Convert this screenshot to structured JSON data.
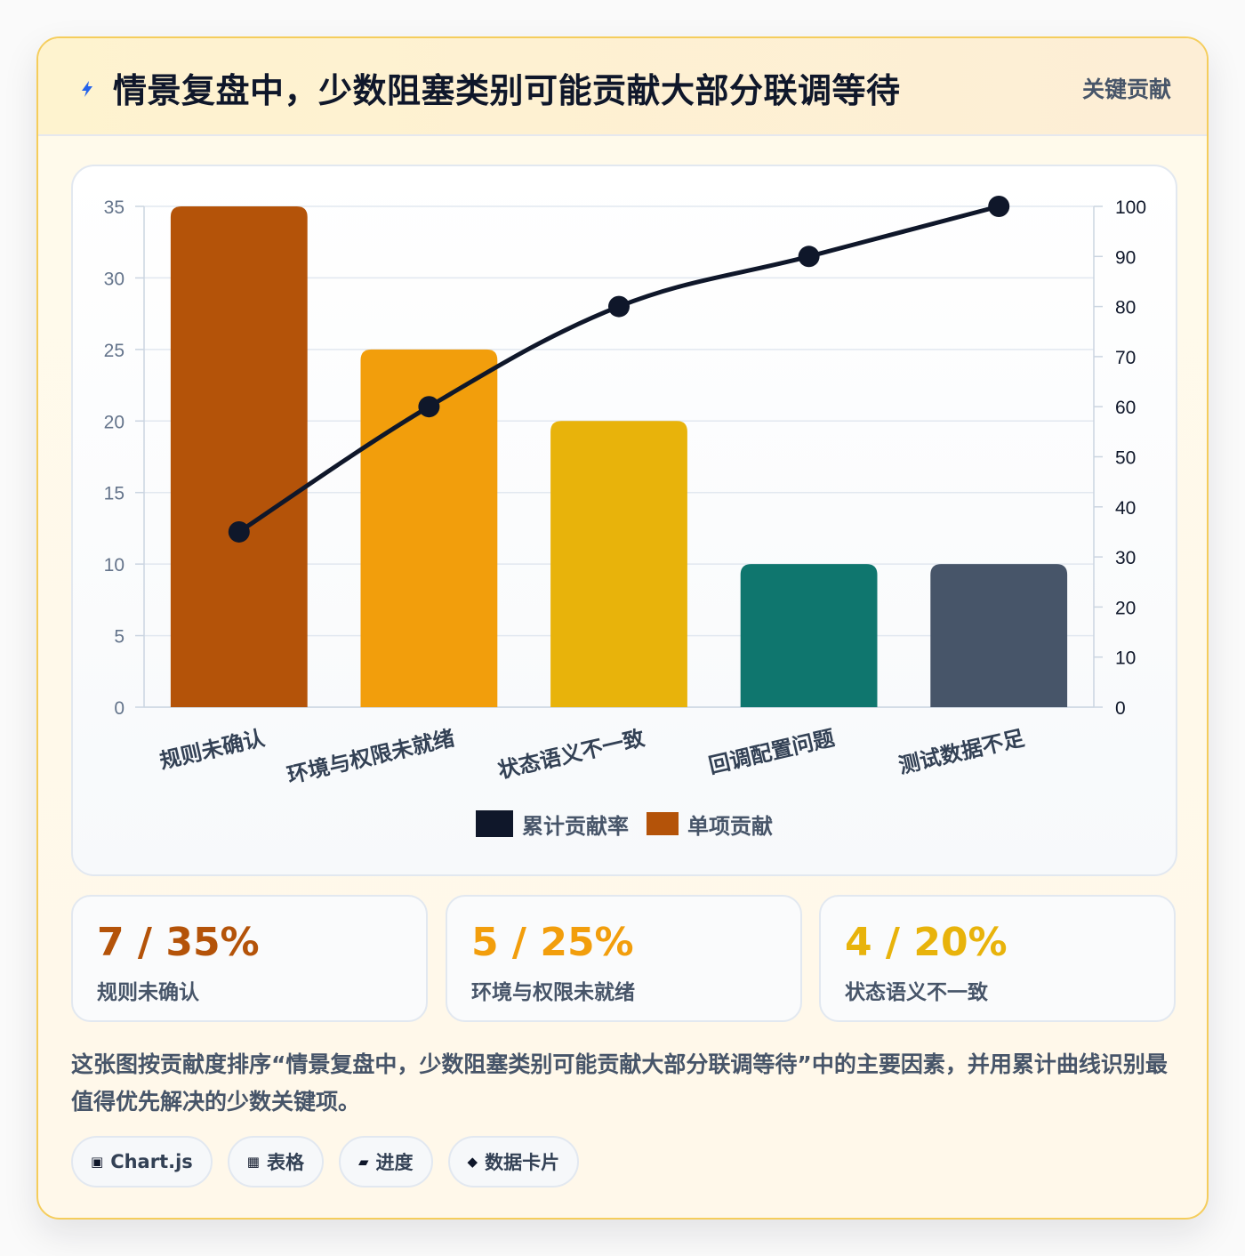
{
  "header": {
    "icon": "lightning-icon",
    "title": "情景复盘中，少数阻塞类别可能贡献大部分联调等待",
    "badge": "关键贡献"
  },
  "chart_data": {
    "type": "bar",
    "categories": [
      "规则未确认",
      "环境与权限未就绪",
      "状态语义不一致",
      "回调配置问题",
      "测试数据不足"
    ],
    "series": [
      {
        "name": "单项贡献",
        "type": "bar",
        "axis": "left",
        "values": [
          35,
          25,
          20,
          10,
          10
        ]
      },
      {
        "name": "累计贡献率",
        "type": "line",
        "axis": "right",
        "values": [
          35,
          60,
          80,
          90,
          100
        ]
      }
    ],
    "bar_colors": [
      "#b45309",
      "#f29e0c",
      "#e8b30b",
      "#0f766e",
      "#475569"
    ],
    "line_color": "#0f172a",
    "ylim": [
      0,
      35
    ],
    "y_ticks": [
      0,
      5,
      10,
      15,
      20,
      25,
      30,
      35
    ],
    "y2lim": [
      0,
      100
    ],
    "y2_ticks": [
      0,
      10,
      20,
      30,
      40,
      50,
      60,
      70,
      80,
      90,
      100
    ],
    "grid": true,
    "legend_position": "bottom"
  },
  "legend": [
    {
      "label": "累计贡献率",
      "color": "#0f172a"
    },
    {
      "label": "单项贡献",
      "color": "#b45309"
    }
  ],
  "stats": [
    {
      "value": "7 / 35%",
      "label": "规则未确认",
      "color": "#b45309"
    },
    {
      "value": "5 / 25%",
      "label": "环境与权限未就绪",
      "color": "#f29e0c"
    },
    {
      "value": "4 / 20%",
      "label": "状态语义不一致",
      "color": "#e8b30b"
    }
  ],
  "description": "这张图按贡献度排序“情景复盘中，少数阻塞类别可能贡献大部分联调等待”中的主要因素，并用累计曲线识别最值得优先解决的少数关键项。",
  "tags": [
    {
      "icon": "▣",
      "label": "Chart.js"
    },
    {
      "icon": "▦",
      "label": "表格"
    },
    {
      "icon": "▰",
      "label": "进度"
    },
    {
      "icon": "◆",
      "label": "数据卡片"
    }
  ]
}
